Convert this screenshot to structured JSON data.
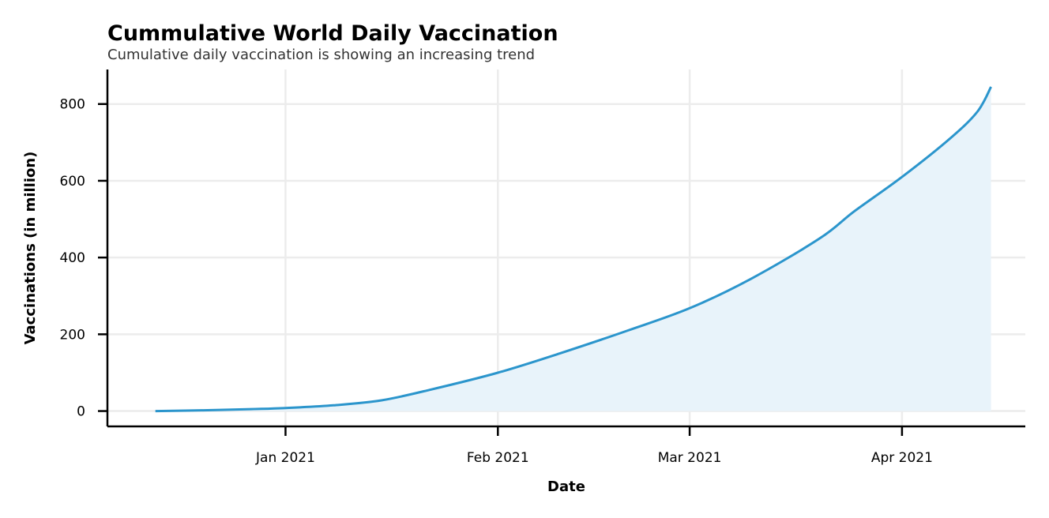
{
  "chart_data": {
    "type": "area",
    "title": "Cummulative World Daily Vaccination",
    "subtitle": "Cumulative daily vaccination is showing an increasing trend",
    "xlabel": "Date",
    "ylabel": "Vaccinations (in million)",
    "x_type": "date",
    "xlim": [
      "2020-12-06",
      "2021-04-19"
    ],
    "ylim": [
      -40,
      890
    ],
    "x_ticks": [
      {
        "date": "2021-01-01",
        "label": "Jan 2021"
      },
      {
        "date": "2021-02-01",
        "label": "Feb 2021"
      },
      {
        "date": "2021-03-01",
        "label": "Mar 2021"
      },
      {
        "date": "2021-04-01",
        "label": "Apr 2021"
      }
    ],
    "y_ticks": [
      0,
      200,
      400,
      600,
      800
    ],
    "grid": true,
    "line_color": "#2b95cc",
    "fill_color": "#e8f3fa",
    "series": [
      {
        "x": [
          "2020-12-13",
          "2020-12-20",
          "2020-12-27",
          "2021-01-01",
          "2021-01-08",
          "2021-01-15",
          "2021-01-22",
          "2021-02-01",
          "2021-02-10",
          "2021-02-20",
          "2021-03-01",
          "2021-03-10",
          "2021-03-20",
          "2021-03-25",
          "2021-04-01",
          "2021-04-08",
          "2021-04-12",
          "2021-04-14"
        ],
        "y": [
          0,
          2,
          5,
          8,
          15,
          28,
          55,
          100,
          150,
          210,
          268,
          345,
          450,
          520,
          610,
          710,
          780,
          845
        ]
      }
    ]
  }
}
